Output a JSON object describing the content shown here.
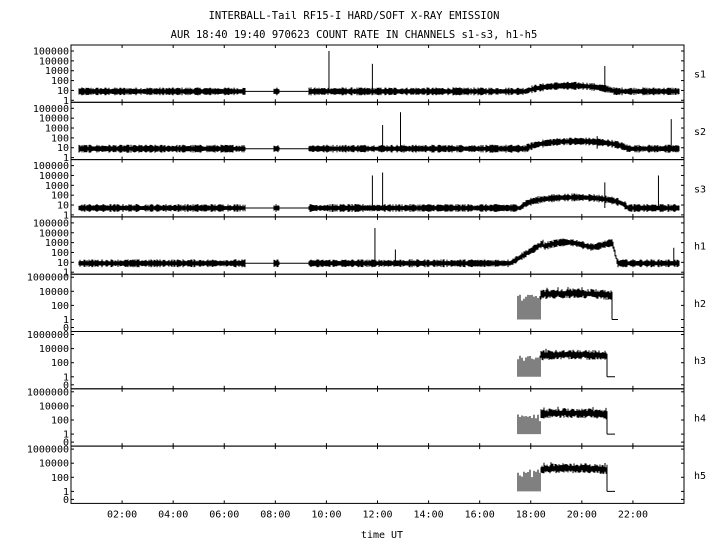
{
  "chart_data": {
    "type": "line",
    "title": "INTERBALL-Tail RF15-I HARD/SOFT X-RAY EMISSION",
    "subtitle": "AUR 18:40 19:40 970623  COUNT RATE IN CHANNELS s1-s3, h1-h5",
    "xlabel": "time UT",
    "xlim": [
      0,
      24
    ],
    "x_tick_labels": [
      "02:00",
      "04:00",
      "06:00",
      "08:00",
      "10:00",
      "12:00",
      "14:00",
      "16:00",
      "18:00",
      "20:00",
      "22:00"
    ],
    "x_ticks_hours": [
      2,
      4,
      6,
      8,
      10,
      12,
      14,
      16,
      18,
      20,
      22
    ],
    "y_scale": "log",
    "grid": false,
    "panels": [
      {
        "name": "s1",
        "ytick_labels": [
          "100000",
          "10000",
          "1000",
          "100",
          "10",
          "1"
        ],
        "ytick_values": [
          100000,
          10000,
          1000,
          100,
          10,
          1
        ],
        "data_intervals_hours": [
          [
            0.3,
            6.8
          ],
          [
            7.95,
            8.15
          ],
          [
            9.3,
            23.8
          ]
        ],
        "linear_gaps_hours": [
          [
            6.8,
            7.95
          ],
          [
            8.15,
            9.3
          ]
        ],
        "baseline": 8,
        "bumps": [
          {
            "t_start": 17.8,
            "t_end": 21.3,
            "peak_t": 19.5,
            "peak": 30
          }
        ],
        "spikes": [
          {
            "t": 10.1,
            "value": 100000
          },
          {
            "t": 11.8,
            "value": 5000
          },
          {
            "t": 20.9,
            "value": 3000
          }
        ]
      },
      {
        "name": "s2",
        "ytick_labels": [
          "100000",
          "10000",
          "1000",
          "100",
          "10",
          "1"
        ],
        "ytick_values": [
          100000,
          10000,
          1000,
          100,
          10,
          1
        ],
        "data_intervals_hours": [
          [
            0.3,
            6.8
          ],
          [
            7.95,
            8.15
          ],
          [
            9.3,
            23.8
          ]
        ],
        "linear_gaps_hours": [
          [
            6.8,
            7.95
          ],
          [
            8.15,
            9.3
          ]
        ],
        "baseline": 8,
        "bumps": [
          {
            "t_start": 17.8,
            "t_end": 21.8,
            "peak_t": 19.8,
            "peak": 45
          }
        ],
        "spikes": [
          {
            "t": 12.2,
            "value": 2000
          },
          {
            "t": 12.9,
            "value": 40000
          },
          {
            "t": 20.6,
            "value": 150
          },
          {
            "t": 23.5,
            "value": 8000
          }
        ]
      },
      {
        "name": "s3",
        "ytick_labels": [
          "100000",
          "10000",
          "1000",
          "100",
          "10",
          "1"
        ],
        "ytick_values": [
          100000,
          10000,
          1000,
          100,
          10,
          1
        ],
        "data_intervals_hours": [
          [
            0.3,
            6.8
          ],
          [
            7.95,
            8.15
          ],
          [
            9.3,
            23.8
          ]
        ],
        "linear_gaps_hours": [
          [
            6.8,
            7.95
          ],
          [
            8.15,
            9.3
          ]
        ],
        "baseline": 5,
        "bumps": [
          {
            "t_start": 17.6,
            "t_end": 21.8,
            "peak_t": 19.7,
            "peak": 60
          }
        ],
        "spikes": [
          {
            "t": 11.8,
            "value": 10000
          },
          {
            "t": 12.2,
            "value": 20000
          },
          {
            "t": 20.9,
            "value": 2000
          },
          {
            "t": 23.0,
            "value": 10000
          }
        ]
      },
      {
        "name": "h1",
        "ytick_labels": [
          "100000",
          "10000",
          "1000",
          "100",
          "10",
          "1"
        ],
        "ytick_values": [
          100000,
          10000,
          1000,
          100,
          10,
          1
        ],
        "data_intervals_hours": [
          [
            0.3,
            6.8
          ],
          [
            7.95,
            8.15
          ],
          [
            9.3,
            23.8
          ]
        ],
        "linear_gaps_hours": [
          [
            6.8,
            7.95
          ],
          [
            8.15,
            9.3
          ]
        ],
        "baseline": 8,
        "plateau": {
          "t_rise_start": 17.2,
          "t_top_start": 18.5,
          "t_top_end": 21.2,
          "t_fall_end": 21.4,
          "level": 900
        },
        "spikes": [
          {
            "t": 11.9,
            "value": 30000
          },
          {
            "t": 12.7,
            "value": 200
          },
          {
            "t": 23.6,
            "value": 300
          }
        ]
      },
      {
        "name": "h2",
        "ytick_labels": [
          "1000000",
          "10000",
          "100",
          "1",
          "0"
        ],
        "ytick_values": [
          1000000,
          10000,
          100,
          1,
          0
        ],
        "burst": {
          "t_start": 17.5,
          "t_stable": 18.4,
          "t_end": 21.2,
          "t_tail_end": 21.4,
          "level": 5000,
          "bottom": 0.5
        }
      },
      {
        "name": "h3",
        "ytick_labels": [
          "1000000",
          "10000",
          "100",
          "1",
          "0"
        ],
        "ytick_values": [
          1000000,
          10000,
          100,
          1,
          0
        ],
        "burst": {
          "t_start": 17.5,
          "t_stable": 18.4,
          "t_end": 21.0,
          "t_tail_end": 21.3,
          "level": 1500,
          "bottom": 0.5
        }
      },
      {
        "name": "h4",
        "ytick_labels": [
          "1000000",
          "10000",
          "100",
          "1",
          "0"
        ],
        "ytick_values": [
          1000000,
          10000,
          100,
          1,
          0
        ],
        "burst": {
          "t_start": 17.5,
          "t_stable": 18.4,
          "t_end": 21.0,
          "t_tail_end": 21.3,
          "level": 1000,
          "bottom": 0.5
        }
      },
      {
        "name": "h5",
        "ytick_labels": [
          "1000000",
          "10000",
          "100",
          "1",
          "0"
        ],
        "ytick_values": [
          1000000,
          10000,
          100,
          1,
          0
        ],
        "burst": {
          "t_start": 17.5,
          "t_stable": 18.4,
          "t_end": 21.0,
          "t_tail_end": 21.3,
          "level": 2000,
          "bottom": 0.5
        }
      }
    ]
  }
}
